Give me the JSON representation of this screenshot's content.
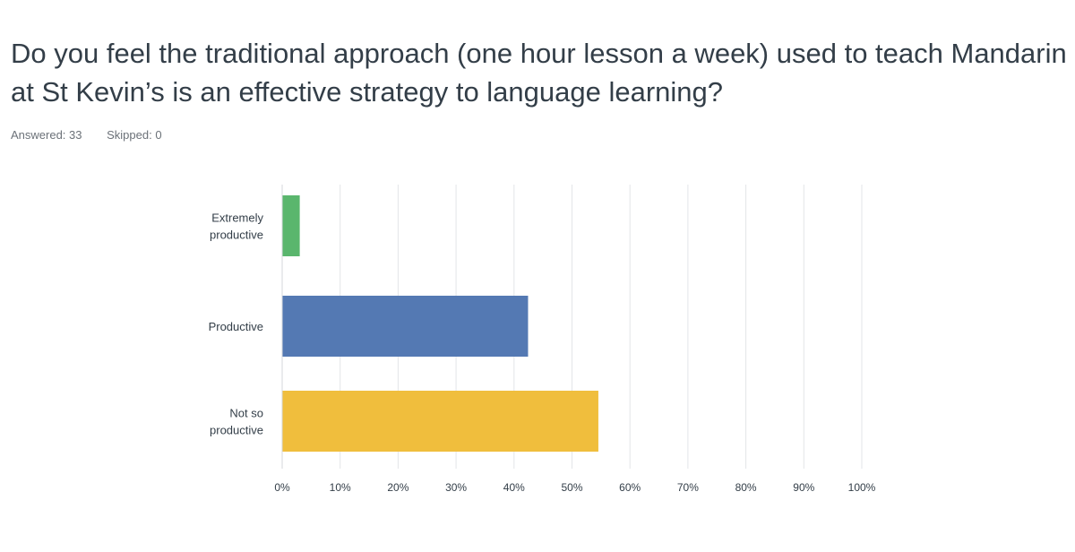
{
  "question": {
    "title": "Do you feel the traditional approach (one hour lesson a week) used to teach Mandarin at St Kevin’s is an effective strategy to language learning?",
    "answered": "Answered: 33",
    "skipped": "Skipped: 0"
  },
  "chart_data": {
    "type": "bar",
    "orientation": "horizontal",
    "categories": [
      [
        "Extremely",
        "productive"
      ],
      [
        "Productive"
      ],
      [
        "Not so",
        "productive"
      ]
    ],
    "values": [
      3.03,
      42.42,
      54.55
    ],
    "colors": [
      "#5ab66d",
      "#5479b3",
      "#f0be3d"
    ],
    "xlim": [
      0,
      100
    ],
    "x_ticks": [
      0,
      10,
      20,
      30,
      40,
      50,
      60,
      70,
      80,
      90,
      100
    ],
    "tick_suffix": "%",
    "grid": true
  }
}
